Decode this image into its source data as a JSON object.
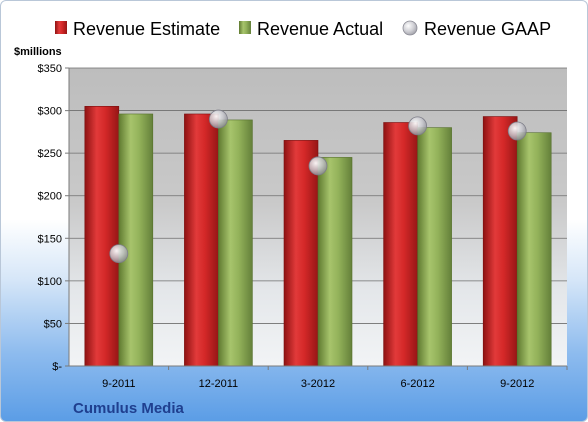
{
  "chart_data": {
    "type": "bar",
    "title": "",
    "company_label": "Cumulus Media",
    "y_unit_label": "$millions",
    "categories": [
      "9-2011",
      "12-2011",
      "3-2012",
      "6-2012",
      "9-2012"
    ],
    "series": [
      {
        "name": "Revenue Estimate",
        "kind": "bar",
        "color": "#cc2222",
        "values": [
          305,
          296,
          265,
          286,
          293
        ]
      },
      {
        "name": "Revenue Actual",
        "kind": "bar",
        "color": "#8fae55",
        "values": [
          296,
          289,
          245,
          280,
          274
        ]
      },
      {
        "name": "Revenue GAAP",
        "kind": "marker",
        "color": "#c8c8cc",
        "values": [
          132,
          290,
          235,
          282,
          276
        ]
      }
    ],
    "ylim": [
      0,
      350
    ],
    "yticks": [
      0,
      50,
      100,
      150,
      200,
      250,
      300,
      350
    ],
    "ytick_labels": [
      "$-",
      "$50",
      "$100",
      "$150",
      "$200",
      "$250",
      "$300",
      "$350"
    ],
    "grid": true,
    "legend_position": "top"
  }
}
